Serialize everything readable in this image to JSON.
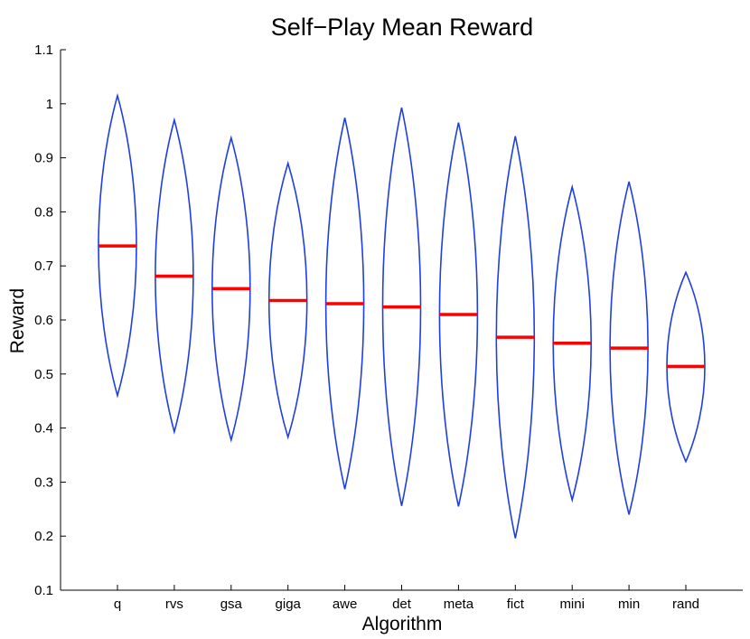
{
  "chart_data": {
    "type": "violin",
    "title": "Self−Play Mean Reward",
    "xlabel": "Algorithm",
    "ylabel": "Reward",
    "ylim": [
      0.1,
      1.1
    ],
    "yticks": [
      "0.1",
      "0.2",
      "0.3",
      "0.4",
      "0.5",
      "0.6",
      "0.7",
      "0.8",
      "0.9",
      "1",
      "1.1"
    ],
    "categories": [
      "q",
      "rvs",
      "gsa",
      "giga",
      "awe",
      "det",
      "meta",
      "fict",
      "mini",
      "min",
      "rand"
    ],
    "series": [
      {
        "category": "q",
        "min": 0.46,
        "max": 1.015,
        "mean": 0.737
      },
      {
        "category": "rvs",
        "min": 0.393,
        "max": 0.97,
        "mean": 0.681
      },
      {
        "category": "gsa",
        "min": 0.378,
        "max": 0.937,
        "mean": 0.658
      },
      {
        "category": "giga",
        "min": 0.383,
        "max": 0.89,
        "mean": 0.636
      },
      {
        "category": "awe",
        "min": 0.287,
        "max": 0.974,
        "mean": 0.63
      },
      {
        "category": "det",
        "min": 0.256,
        "max": 0.993,
        "mean": 0.624
      },
      {
        "category": "meta",
        "min": 0.255,
        "max": 0.965,
        "mean": 0.61
      },
      {
        "category": "fict",
        "min": 0.196,
        "max": 0.94,
        "mean": 0.568
      },
      {
        "category": "mini",
        "min": 0.267,
        "max": 0.846,
        "mean": 0.557
      },
      {
        "category": "min",
        "min": 0.24,
        "max": 0.856,
        "mean": 0.548
      },
      {
        "category": "rand",
        "min": 0.338,
        "max": 0.688,
        "mean": 0.514
      }
    ],
    "colors": {
      "violin": "#1f3fe0",
      "mean": "#ff0000",
      "axis": "#000000"
    },
    "grid": false
  }
}
